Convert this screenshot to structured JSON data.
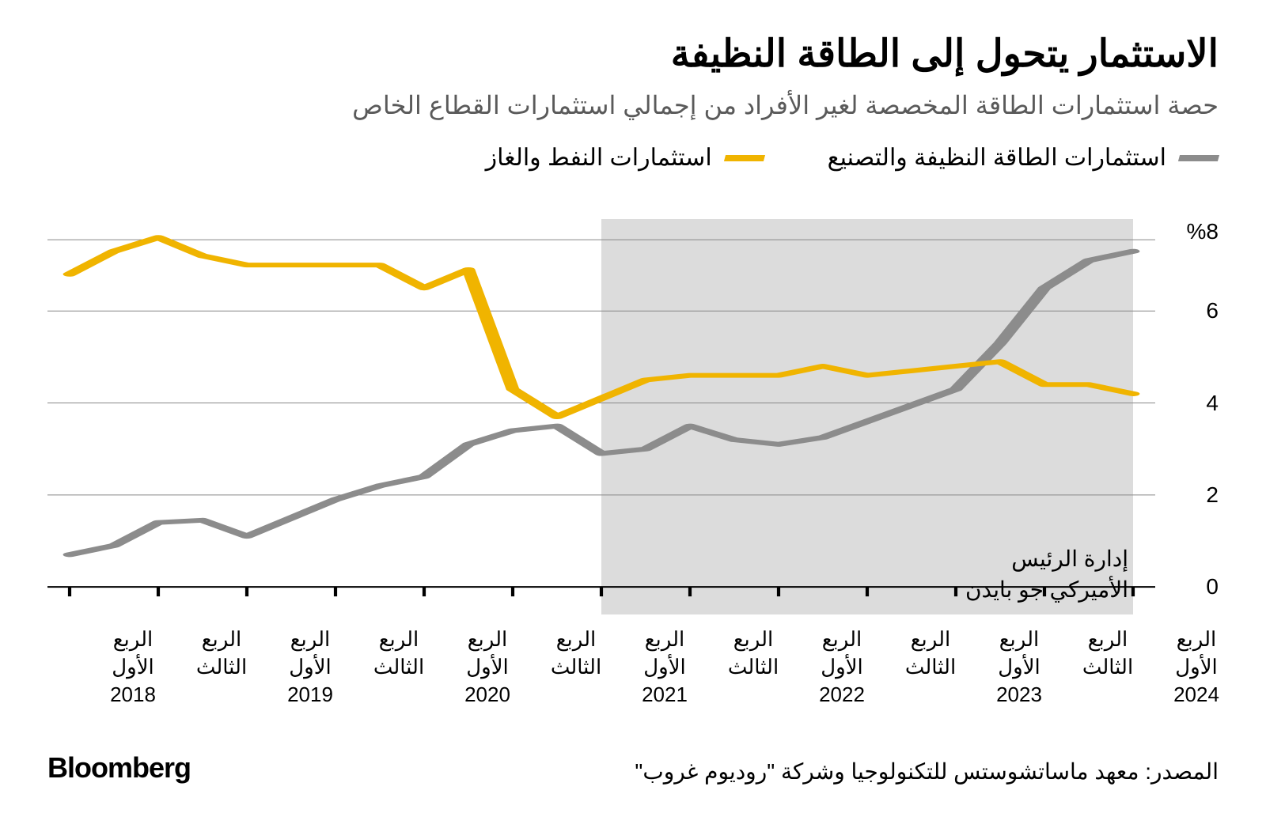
{
  "title": "الاستثمار يتحول إلى الطاقة النظيفة",
  "subtitle": "حصة استثمارات الطاقة المخصصة لغير الأفراد من إجمالي استثمارات القطاع الخاص",
  "legend": {
    "series1": {
      "label": "استثمارات الطاقة النظيفة والتصنيع",
      "color": "#8c8c8c"
    },
    "series2": {
      "label": "استثمارات النفط والغاز",
      "color": "#f0b400"
    }
  },
  "chart": {
    "type": "line",
    "background_color": "#ffffff",
    "shaded_region_color": "#bfbfbf",
    "shaded_region_opacity": 0.55,
    "grid_color": "#888888",
    "grid_width": 1,
    "axis_line_color": "#000000",
    "axis_line_width": 2,
    "line_width": 6,
    "y": {
      "min": -0.6,
      "max": 8.0,
      "ticks": [
        0,
        2,
        4,
        6
      ],
      "top_label": "%8",
      "label_fontsize": 28,
      "label_color": "#000000"
    },
    "x": {
      "n_points": 25,
      "ticks": [
        {
          "i": 0,
          "line1": "الربع",
          "line2": "الأول",
          "year": "2018"
        },
        {
          "i": 2,
          "line1": "الربع",
          "line2": "الثالث",
          "year": ""
        },
        {
          "i": 4,
          "line1": "الربع",
          "line2": "الأول",
          "year": "2019"
        },
        {
          "i": 6,
          "line1": "الربع",
          "line2": "الثالث",
          "year": ""
        },
        {
          "i": 8,
          "line1": "الربع",
          "line2": "الأول",
          "year": "2020"
        },
        {
          "i": 10,
          "line1": "الربع",
          "line2": "الثالث",
          "year": ""
        },
        {
          "i": 12,
          "line1": "الربع",
          "line2": "الأول",
          "year": "2021"
        },
        {
          "i": 14,
          "line1": "الربع",
          "line2": "الثالث",
          "year": ""
        },
        {
          "i": 16,
          "line1": "الربع",
          "line2": "الأول",
          "year": "2022"
        },
        {
          "i": 18,
          "line1": "الربع",
          "line2": "الثالث",
          "year": ""
        },
        {
          "i": 20,
          "line1": "الربع",
          "line2": "الأول",
          "year": "2023"
        },
        {
          "i": 22,
          "line1": "الربع",
          "line2": "الثالث",
          "year": ""
        },
        {
          "i": 24,
          "line1": "الربع",
          "line2": "الأول",
          "year": "2024"
        }
      ],
      "tick_mark_length": 12,
      "label_fontsize": 26
    },
    "shaded_start_i": 12,
    "series": {
      "clean": {
        "color": "#8c8c8c",
        "values": [
          0.7,
          0.9,
          1.4,
          1.45,
          1.1,
          1.5,
          1.9,
          2.2,
          2.4,
          3.1,
          3.4,
          3.5,
          2.9,
          3.0,
          3.5,
          3.2,
          3.1,
          3.25,
          3.6,
          3.95,
          4.3,
          5.3,
          6.5,
          7.1,
          7.3
        ]
      },
      "oilgas": {
        "color": "#f0b400",
        "values": [
          6.8,
          7.3,
          7.6,
          7.2,
          7.0,
          7.0,
          7.0,
          7.0,
          6.5,
          6.9,
          4.3,
          3.7,
          4.1,
          4.5,
          4.6,
          4.6,
          4.6,
          4.8,
          4.6,
          4.7,
          4.8,
          4.9,
          4.4,
          4.4,
          4.2
        ]
      }
    },
    "annotation": {
      "line1": "إدارة الرئيس",
      "line2": "الأميركي جو بايدن",
      "x_i": 24,
      "y_value": 0.95,
      "fontsize": 28
    }
  },
  "source": "المصدر: معهد ماساتشوستس للتكنولوجيا وشركة \"روديوم غروب\"",
  "brand": "Bloomberg"
}
